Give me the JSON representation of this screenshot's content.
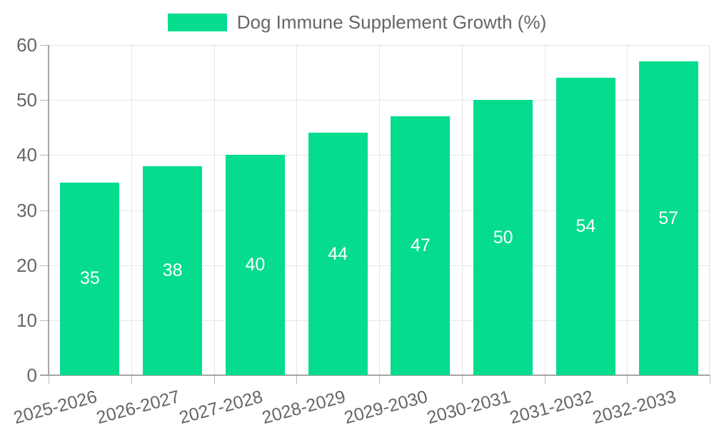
{
  "chart_data": {
    "type": "bar",
    "title": "Dog Immune Supplement Growth (%)",
    "categories": [
      "2025-2026",
      "2026-2027",
      "2027-2028",
      "2028-2029",
      "2029-2030",
      "2030-2031",
      "2031-2032",
      "2032-2033"
    ],
    "values": [
      35,
      38,
      40,
      44,
      47,
      50,
      54,
      57
    ],
    "xlabel": "",
    "ylabel": "",
    "ylim": [
      0,
      60
    ],
    "yticks": [
      0,
      10,
      20,
      30,
      40,
      50,
      60
    ],
    "grid": true,
    "legend_position": "top",
    "value_labels": "inside-center"
  },
  "legend": {
    "label": "Dog Immune Supplement Growth (%)"
  },
  "colors": {
    "bar": "#05DC8E",
    "value_label": "#ffffff",
    "grid": "#e6e6e6",
    "plot_border": "#e0e0e0",
    "axis": "#a6a6a6",
    "tick": "#b9b9b9",
    "tick_text": "#666666",
    "legend_text": "#666666",
    "background": "#ffffff"
  }
}
